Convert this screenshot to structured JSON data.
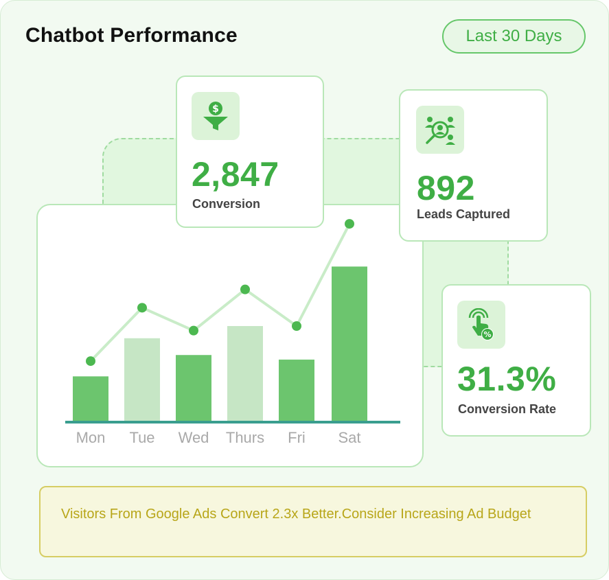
{
  "header": {
    "title": "Chatbot Performance",
    "range_label": "Last 30 Days"
  },
  "metrics": [
    {
      "value": "2,847",
      "label": "Conversion",
      "icon": "funnel-dollar-icon"
    },
    {
      "value": "892",
      "label": "Leads Captured",
      "icon": "target-users-icon"
    },
    {
      "value": "31.3%",
      "label": "Conversion Rate",
      "icon": "tap-percent-icon"
    }
  ],
  "insight": {
    "text": "Visitors From Google Ads Convert 2.3x Better.Consider Increasing Ad Budget"
  },
  "colors": {
    "accent": "#3fae45",
    "bar_dark": "#6cc56e",
    "bar_light": "#c6e6c5",
    "line": "#c9ecc8",
    "axis": "#3a9e8f",
    "tick": "#a9a9a9"
  },
  "chart_data": {
    "type": "bar",
    "categories": [
      "Mon",
      "Tue",
      "Wed",
      "Thurs",
      "Fri",
      "Sat"
    ],
    "series": [
      {
        "type": "bar",
        "values": [
          30,
          55,
          44,
          63,
          41,
          102
        ]
      },
      {
        "type": "line",
        "values": [
          40,
          75,
          60,
          87,
          63,
          130
        ]
      }
    ],
    "bar_shades": [
      "dark",
      "light",
      "dark",
      "light",
      "dark",
      "dark"
    ],
    "ylim": [
      0,
      135
    ],
    "title": "",
    "xlabel": "",
    "ylabel": ""
  }
}
